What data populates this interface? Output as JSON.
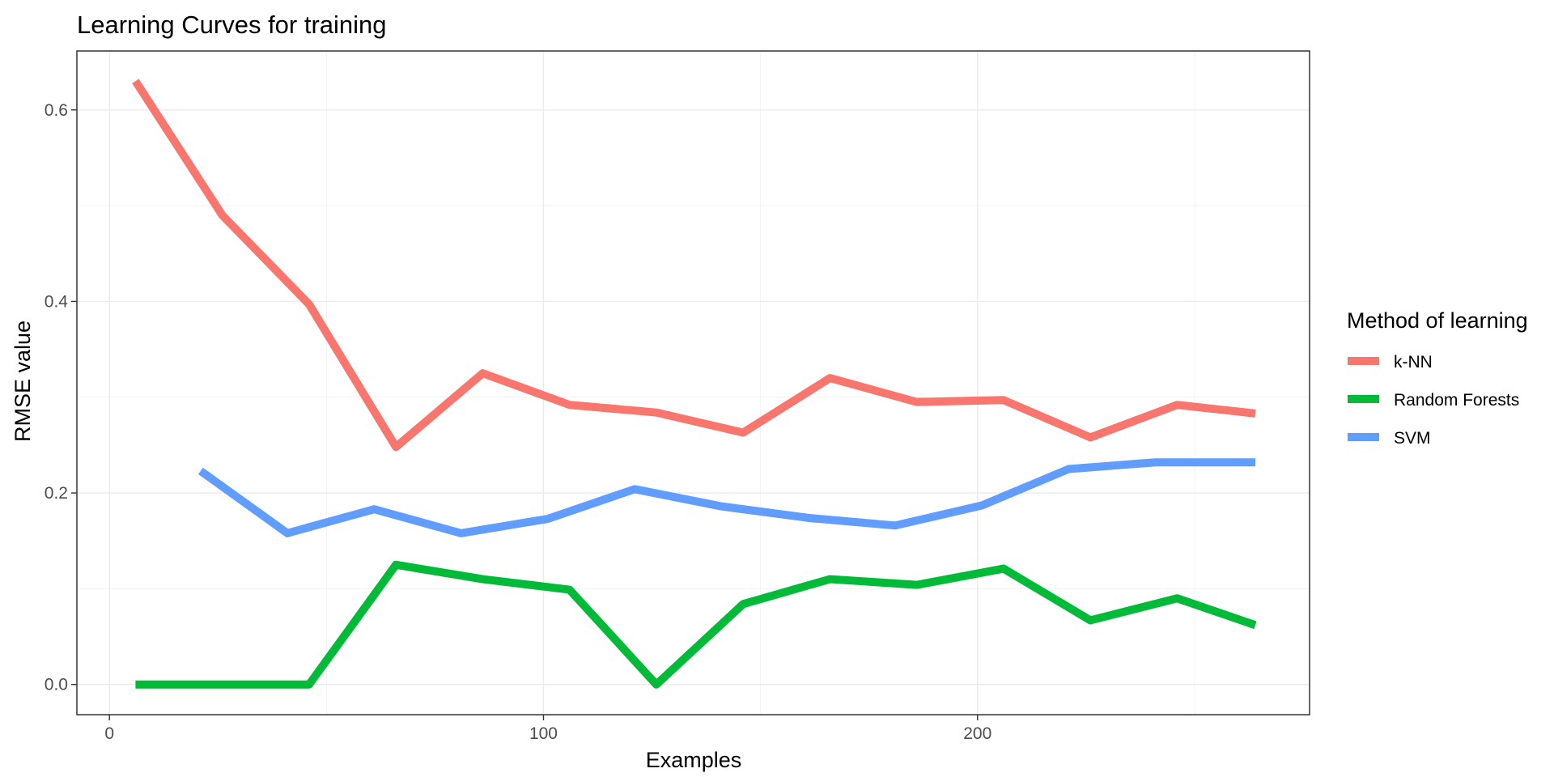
{
  "chart_data": {
    "type": "line",
    "title": "Learning Curves for training",
    "xlabel": "Examples",
    "ylabel": "RMSE value",
    "xlim": [
      -7.5,
      276.5
    ],
    "ylim": [
      -0.0315,
      0.6615
    ],
    "x_ticks": [
      0,
      100,
      200
    ],
    "x_tick_labels": [
      "0",
      "100",
      "200"
    ],
    "y_ticks": [
      0.0,
      0.2,
      0.4,
      0.6
    ],
    "y_tick_labels": [
      "0.0",
      "0.2",
      "0.4",
      "0.6"
    ],
    "grid": true,
    "legend_position": "right",
    "legend_title": "Method of learning",
    "series": [
      {
        "name": "k-NN",
        "color": "#F8766D",
        "x": [
          6,
          26,
          46,
          66,
          86,
          106,
          126,
          146,
          166,
          186,
          206,
          226,
          246,
          264
        ],
        "y": [
          0.63,
          0.49,
          0.397,
          0.248,
          0.325,
          0.292,
          0.284,
          0.263,
          0.32,
          0.295,
          0.297,
          0.258,
          0.292,
          0.283
        ]
      },
      {
        "name": "Random Forests",
        "color": "#00BA38",
        "x": [
          6,
          26,
          46,
          66,
          86,
          106,
          126,
          146,
          166,
          186,
          206,
          226,
          246,
          264
        ],
        "y": [
          0.0,
          0.0,
          0.0,
          0.125,
          0.11,
          0.099,
          0.0,
          0.084,
          0.11,
          0.104,
          0.121,
          0.067,
          0.09,
          0.062
        ]
      },
      {
        "name": "SVM",
        "color": "#619CFF",
        "x": [
          21,
          41,
          61,
          81,
          101,
          121,
          141,
          161,
          181,
          201,
          221,
          241,
          264
        ],
        "y": [
          0.223,
          0.158,
          0.183,
          0.158,
          0.173,
          0.204,
          0.186,
          0.174,
          0.166,
          0.187,
          0.225,
          0.232,
          0.232
        ]
      }
    ]
  }
}
